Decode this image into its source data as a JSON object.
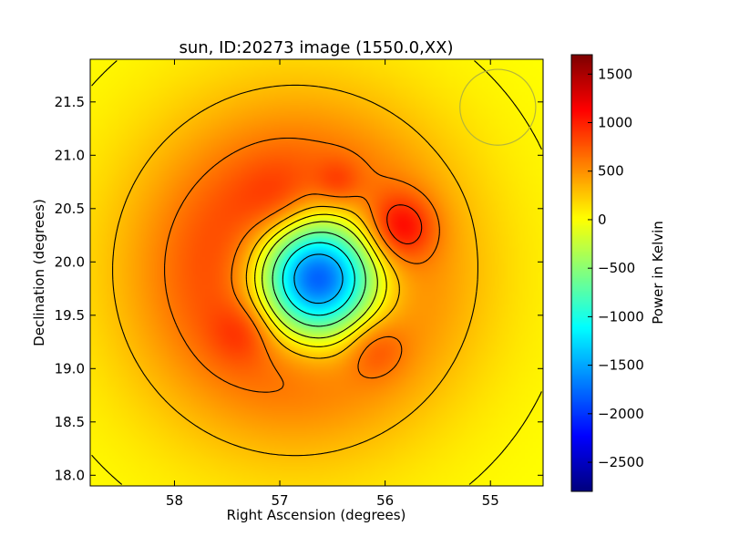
{
  "chart_data": {
    "type": "heatmap",
    "title": "sun, ID:20273 image (1550.0,XX)",
    "xlabel": "Right Ascension (degrees)",
    "ylabel": "Declination (degrees)",
    "colorbar_label": "Power in Kelvin",
    "xlim": [
      58.8,
      54.5
    ],
    "ylim": [
      17.9,
      21.9
    ],
    "x_ticks": [
      58,
      57,
      56,
      55
    ],
    "y_ticks": [
      18.0,
      18.5,
      19.0,
      19.5,
      20.0,
      20.5,
      21.0,
      21.5
    ],
    "x_tick_labels": [
      "58",
      "57",
      "56",
      "55"
    ],
    "y_tick_labels": [
      "18.0",
      "18.5",
      "19.0",
      "19.5",
      "20.0",
      "20.5",
      "21.0",
      "21.5"
    ],
    "colorbar_range": [
      -2800,
      1700
    ],
    "colorbar_ticks": [
      1500,
      1000,
      500,
      0,
      -500,
      -1000,
      -1500,
      -2000,
      -2500
    ],
    "colorbar_tick_labels": [
      "1500",
      "1000",
      "500",
      "0",
      "−500",
      "−1000",
      "−1500",
      "−2000",
      "−2500"
    ],
    "colormap": "jet",
    "beam_circle": {
      "ra": 54.93,
      "dec": 21.45,
      "radius_deg": 0.36
    },
    "sources": [
      {
        "ra": 56.65,
        "dec": 19.85,
        "sigma": 0.42,
        "amp": -3050
      },
      {
        "ra": 56.85,
        "dec": 19.92,
        "sigma": 1.02,
        "amp": 1280
      },
      {
        "ra": 55.85,
        "dec": 20.32,
        "sigma": 0.22,
        "amp": 600
      },
      {
        "ra": 56.1,
        "dec": 19.2,
        "sigma": 0.2,
        "amp": 300
      },
      {
        "ra": 57.35,
        "dec": 19.35,
        "sigma": 0.2,
        "amp": 250
      },
      {
        "ra": 56.45,
        "dec": 20.75,
        "sigma": 0.15,
        "amp": 250
      },
      {
        "ra": 57.0,
        "dec": 20.55,
        "sigma": 0.25,
        "amp": 200
      }
    ],
    "contour_levels": [
      -2600,
      -2200,
      -1800,
      -1400,
      -1000,
      -600,
      -200,
      50,
      300,
      600,
      900,
      1200
    ]
  }
}
